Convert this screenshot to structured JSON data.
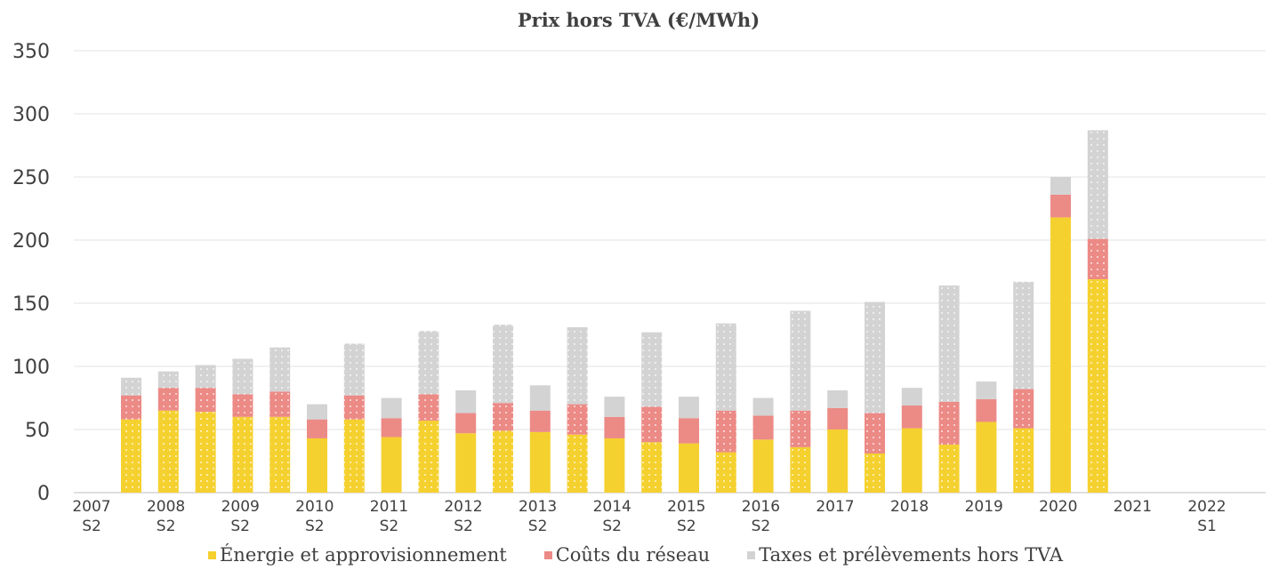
{
  "chart_data": {
    "type": "bar",
    "stacked": true,
    "title": "Prix  hors TVA (€/MWh)",
    "ylim": [
      0,
      350
    ],
    "yticks": [
      0,
      50,
      100,
      150,
      200,
      250,
      300,
      350
    ],
    "grid": true,
    "legend_position": "bottom",
    "category_labels": [
      {
        "year": "2007",
        "half": "S2"
      },
      {
        "year": "2008",
        "half": "S2"
      },
      {
        "year": "2009",
        "half": "S2"
      },
      {
        "year": "2010",
        "half": "S2"
      },
      {
        "year": "2011",
        "half": "S2"
      },
      {
        "year": "2012",
        "half": "S2"
      },
      {
        "year": "2013",
        "half": "S2"
      },
      {
        "year": "2014",
        "half": "S2"
      },
      {
        "year": "2015",
        "half": "S2"
      },
      {
        "year": "2016",
        "half": "S2"
      },
      {
        "year": "2017",
        "half": ""
      },
      {
        "year": "2018",
        "half": ""
      },
      {
        "year": "2019",
        "half": ""
      },
      {
        "year": "2020",
        "half": ""
      },
      {
        "year": "2021",
        "half": ""
      },
      {
        "year": "2022",
        "half": "S1"
      }
    ],
    "series": [
      {
        "name": "Énergie et approvisionnement",
        "color": "#f5d130",
        "values": [
          58,
          65,
          64,
          60,
          60,
          43,
          58,
          44,
          57,
          47,
          49,
          48,
          46,
          43,
          40,
          39,
          32,
          42,
          36,
          50,
          31,
          51,
          38,
          56,
          51,
          218,
          169
        ]
      },
      {
        "name": "Coûts du réseau",
        "color": "#ec8a86",
        "values": [
          19,
          18,
          19,
          18,
          20,
          15,
          19,
          15,
          21,
          16,
          22,
          17,
          24,
          17,
          28,
          20,
          33,
          19,
          29,
          17,
          32,
          18,
          34,
          18,
          31,
          18,
          32
        ]
      },
      {
        "name": "Taxes et prélèvements hors TVA",
        "color": "#d3d3d3",
        "values": [
          14,
          13,
          18,
          28,
          35,
          12,
          41,
          16,
          50,
          18,
          62,
          20,
          61,
          16,
          59,
          17,
          69,
          14,
          79,
          14,
          88,
          14,
          92,
          14,
          85,
          14,
          86
        ]
      }
    ],
    "textured_bar_indexes": [
      0,
      1,
      2,
      3,
      4,
      6,
      8,
      10,
      12,
      14,
      16,
      18,
      20,
      22,
      24,
      26
    ]
  }
}
